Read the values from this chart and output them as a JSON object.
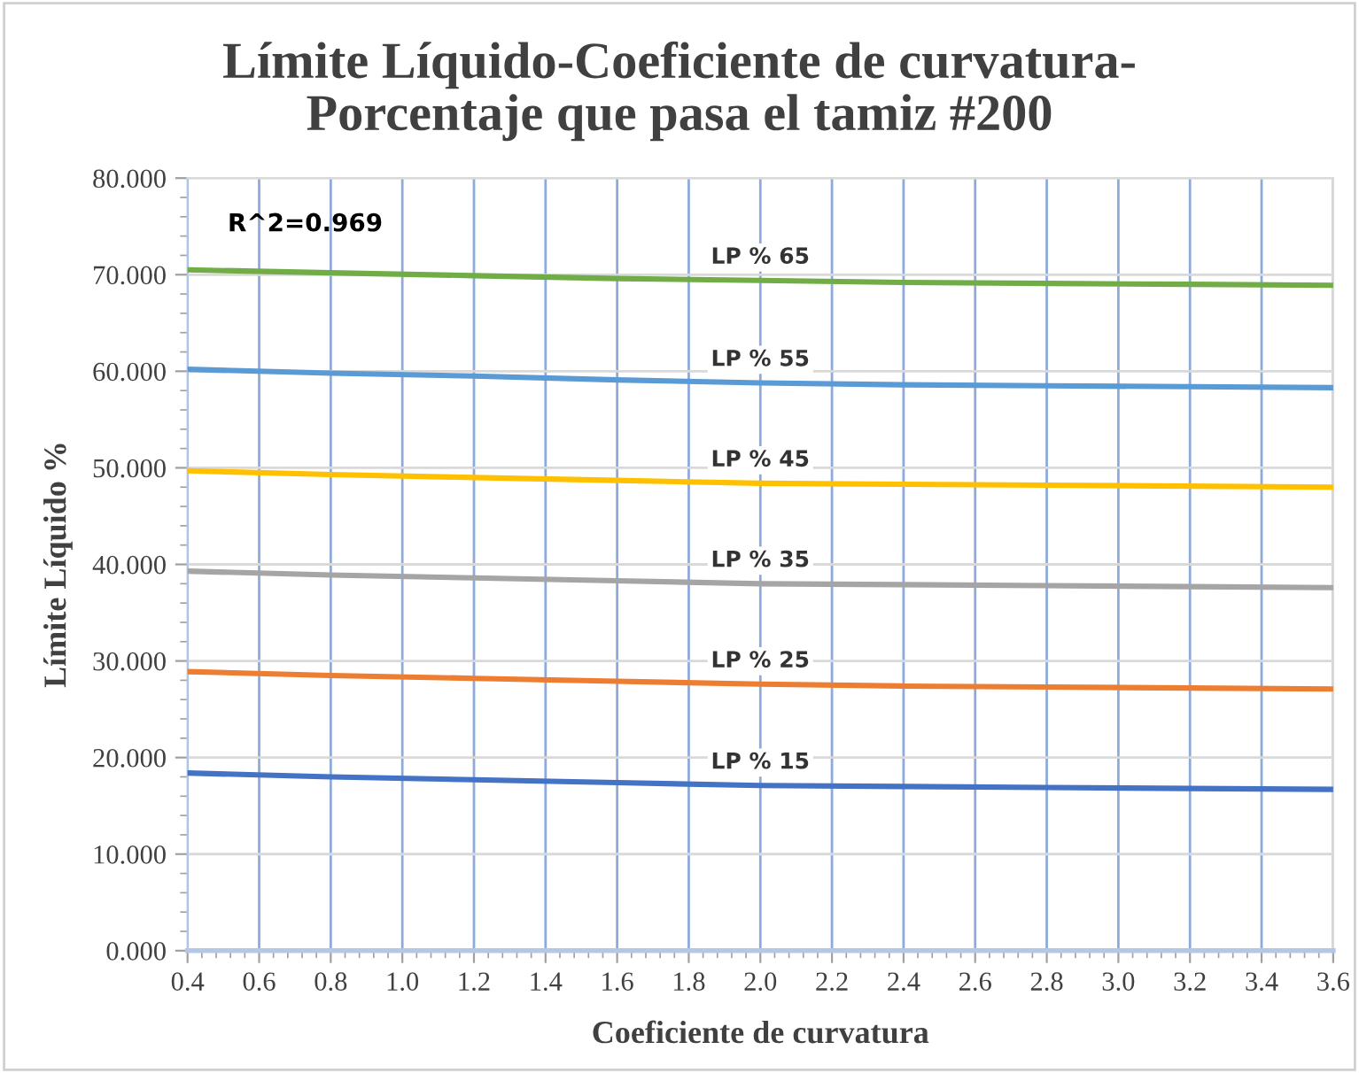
{
  "chart_data": {
    "type": "line",
    "title": "Límite Líquido-Coeficiente de curvatura-\nPorcentaje que pasa el tamiz #200",
    "xlabel": "Coeficiente de curvatura",
    "ylabel": "Límite Líquido %",
    "x": [
      0.4,
      0.8,
      1.2,
      1.6,
      2.0,
      2.4,
      2.8,
      3.2,
      3.6
    ],
    "series": [
      {
        "name": "LP % 65",
        "color": "#70ad47",
        "values": [
          70.5,
          70.2,
          69.9,
          69.6,
          69.4,
          69.2,
          69.1,
          69.0,
          68.9
        ]
      },
      {
        "name": "LP % 55",
        "color": "#5b9bd5",
        "values": [
          60.2,
          59.8,
          59.5,
          59.1,
          58.8,
          58.6,
          58.5,
          58.4,
          58.3
        ]
      },
      {
        "name": "LP % 45",
        "color": "#ffc000",
        "values": [
          49.7,
          49.3,
          49.0,
          48.7,
          48.4,
          48.3,
          48.2,
          48.1,
          48.0
        ]
      },
      {
        "name": "LP % 35",
        "color": "#a5a5a5",
        "values": [
          39.3,
          38.9,
          38.6,
          38.3,
          38.0,
          37.9,
          37.8,
          37.7,
          37.6
        ]
      },
      {
        "name": "LP % 25",
        "color": "#ed7d31",
        "values": [
          28.9,
          28.5,
          28.2,
          27.9,
          27.6,
          27.4,
          27.3,
          27.2,
          27.1
        ]
      },
      {
        "name": "LP % 15",
        "color": "#4472c4",
        "values": [
          18.4,
          18.0,
          17.7,
          17.4,
          17.1,
          17.0,
          16.9,
          16.8,
          16.7
        ]
      }
    ],
    "annotations": [
      "R^2=0.969"
    ],
    "xlim": [
      0.4,
      3.6
    ],
    "xticks": [
      0.4,
      0.6,
      0.8,
      {
        "value": 1,
        "label": "1.0"
      },
      1.2,
      1.4,
      1.6,
      1.8,
      {
        "value": 2,
        "label": "2.0"
      },
      2.2,
      2.4,
      2.6,
      2.8,
      {
        "value": 3,
        "label": "3.0"
      },
      3.2,
      3.4,
      3.6
    ],
    "ylim": [
      0,
      80
    ],
    "yticks": [
      {
        "value": 0,
        "label": "0.000"
      },
      {
        "value": 10,
        "label": "10.000"
      },
      {
        "value": 20,
        "label": "20.000"
      },
      {
        "value": 30,
        "label": "30.000"
      },
      {
        "value": 40,
        "label": "40.000"
      },
      {
        "value": 50,
        "label": "50.000"
      },
      {
        "value": 60,
        "label": "60.000"
      },
      {
        "value": 70,
        "label": "70.000"
      },
      {
        "value": 80,
        "label": "80.000"
      }
    ],
    "grid": true,
    "marker": "none",
    "line_style": "solid"
  }
}
